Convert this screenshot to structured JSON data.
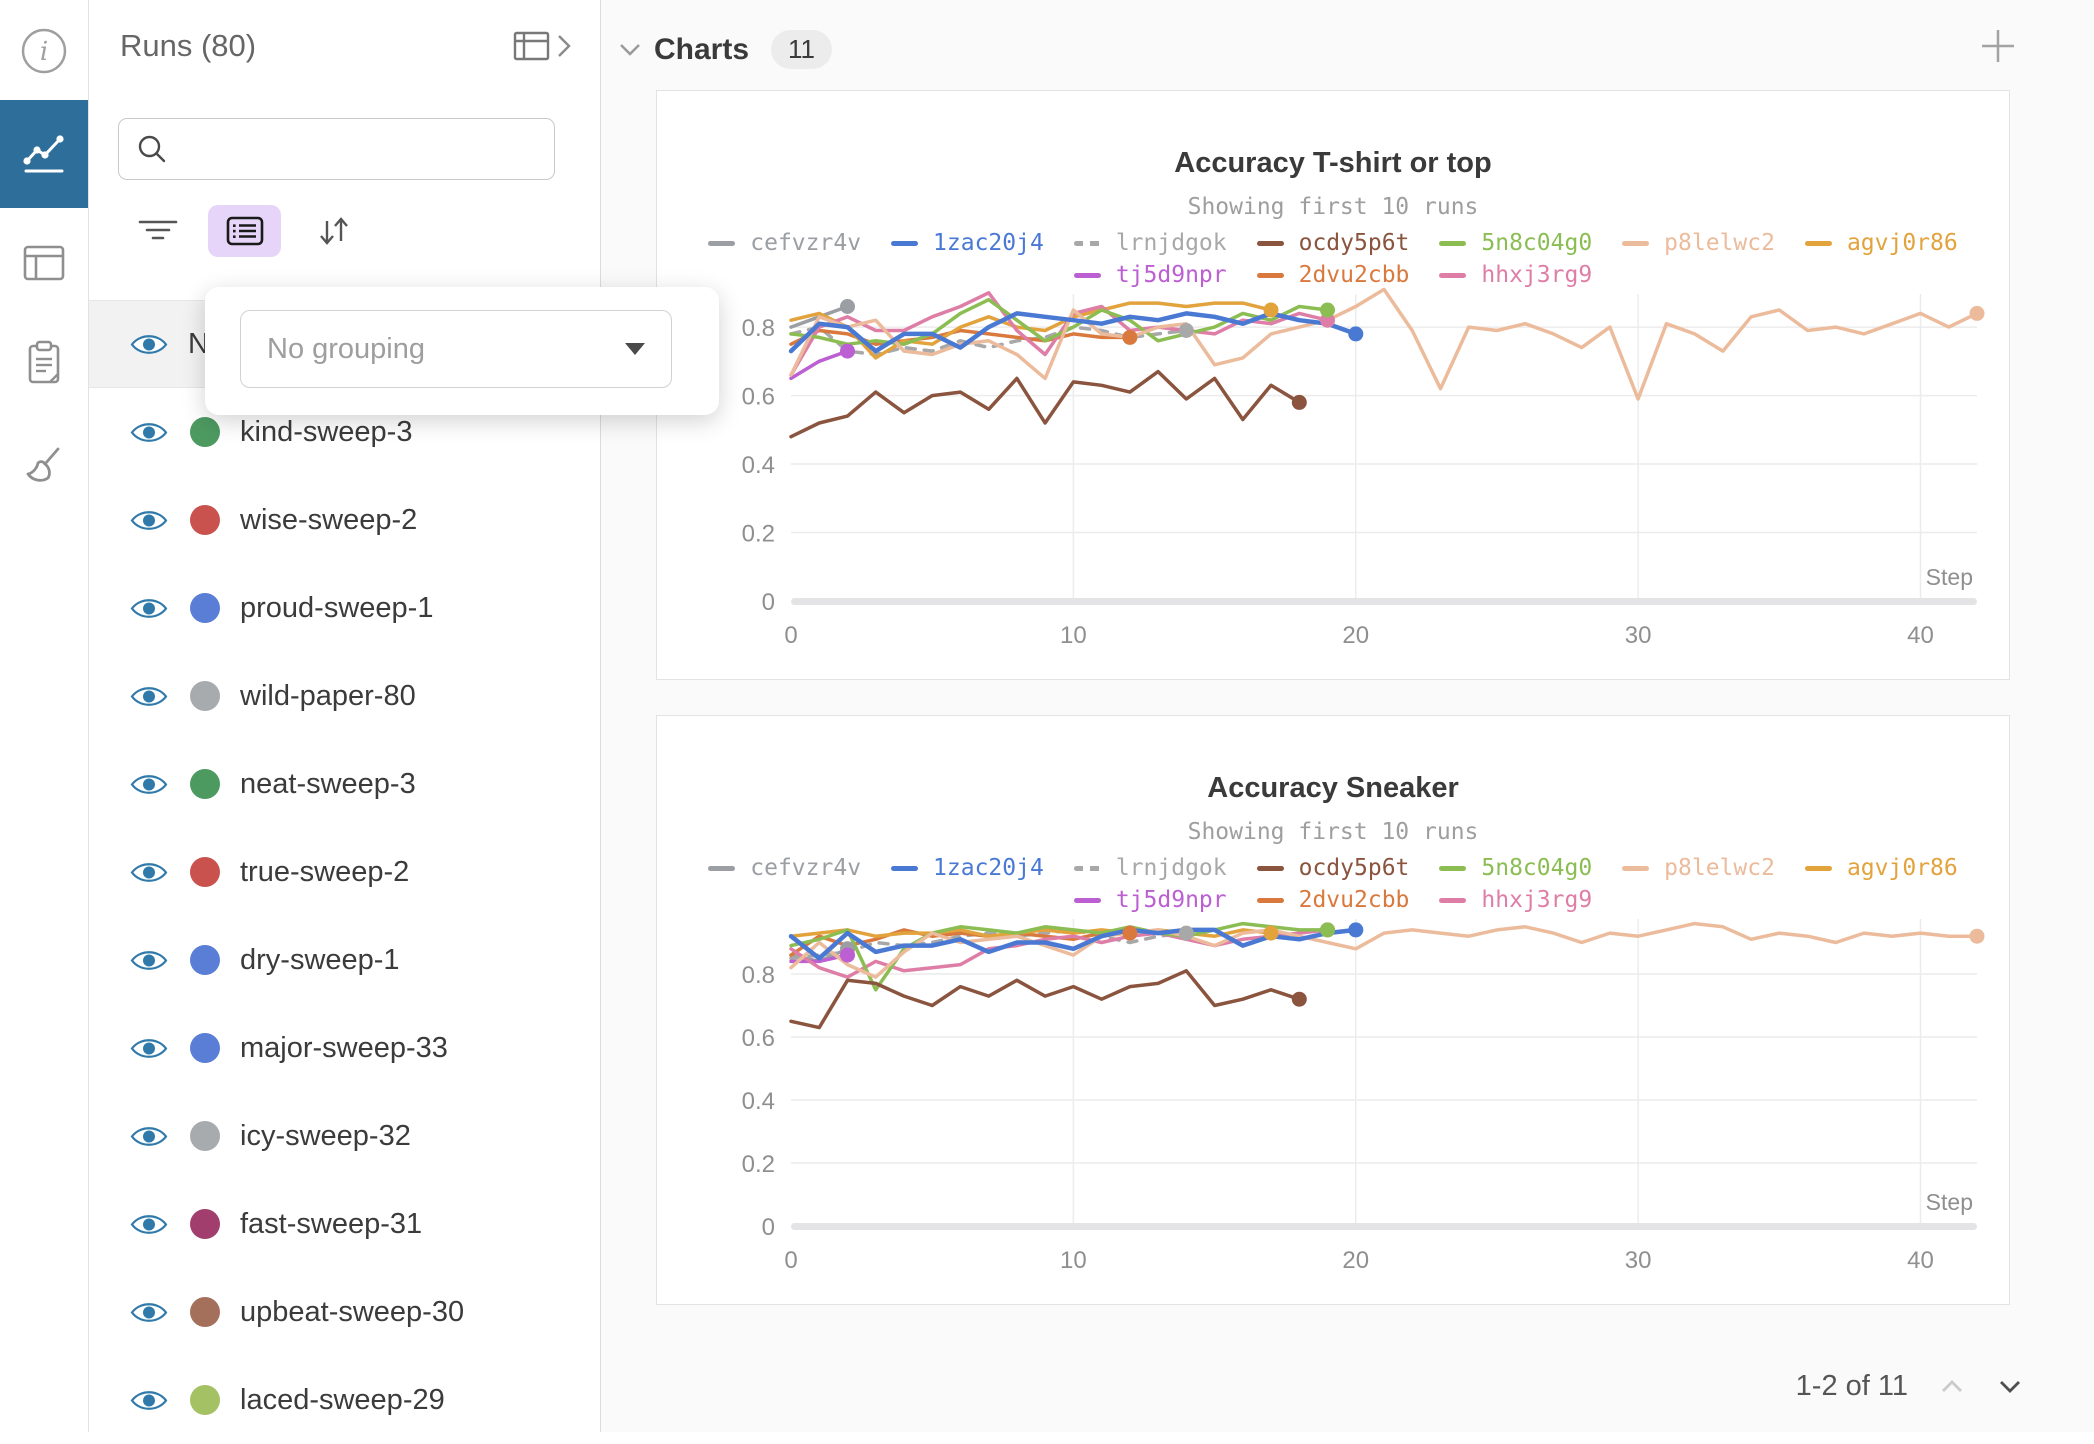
{
  "icons": {
    "rail": [
      "info-icon",
      "line-chart-icon",
      "table-icon",
      "clipboard-icon",
      "broom-icon"
    ],
    "runs_panel": [
      "expand-table-icon",
      "chevron-right-icon",
      "search-icon",
      "filter-icon",
      "list-view-icon",
      "sort-icon",
      "eye-icon"
    ],
    "main": [
      "chevron-down-icon",
      "plus-icon",
      "chevron-up-icon"
    ]
  },
  "nav_rail": {
    "active_color": "#2d6f9a",
    "active_item": "line-chart"
  },
  "runs_panel": {
    "title": "Runs (80)",
    "search": {
      "value": "",
      "placeholder": ""
    },
    "grouping_popup": {
      "selected": "No grouping"
    },
    "list_header": "Name",
    "runs": [
      {
        "name": "kind-sweep-3",
        "color": "#4d9a61"
      },
      {
        "name": "wise-sweep-2",
        "color": "#c9524e"
      },
      {
        "name": "proud-sweep-1",
        "color": "#5a7ed6"
      },
      {
        "name": "wild-paper-80",
        "color": "#a8abae"
      },
      {
        "name": "neat-sweep-3",
        "color": "#4d9a61"
      },
      {
        "name": "true-sweep-2",
        "color": "#c9524e"
      },
      {
        "name": "dry-sweep-1",
        "color": "#5a7ed6"
      },
      {
        "name": "major-sweep-33",
        "color": "#5a7ed6"
      },
      {
        "name": "icy-sweep-32",
        "color": "#a8abae"
      },
      {
        "name": "fast-sweep-31",
        "color": "#a23e6e"
      },
      {
        "name": "upbeat-sweep-30",
        "color": "#a5705b"
      },
      {
        "name": "laced-sweep-29",
        "color": "#a4c263"
      }
    ]
  },
  "charts_section": {
    "title": "Charts",
    "badge": "11",
    "pagination": {
      "label": "1-2 of 11"
    }
  },
  "chart_data": [
    {
      "type": "line",
      "title": "Accuracy T-shirt or top",
      "subtitle": "Showing first 10 runs",
      "xlabel": "Step",
      "ylabel": "",
      "xlim": [
        0,
        42
      ],
      "ylim": [
        0,
        0.92
      ],
      "xticks": [
        0,
        10,
        20,
        30,
        40
      ],
      "yticks": [
        0,
        0.2,
        0.4,
        0.6,
        0.8
      ],
      "grid": true,
      "legend_position": "top",
      "legend_rows": [
        [
          "cefvzr4v",
          "1zac20j4",
          "lrnjdgok",
          "ocdy5p6t",
          "5n8c04g0",
          "p8lelwc2",
          "agvj0r86"
        ],
        [
          "tj5d9npr",
          "2dvu2cbb",
          "hhxj3rg9"
        ]
      ],
      "draw_order": [
        "cefvzr4v",
        "lrnjdgok",
        "tj5d9npr",
        "2dvu2cbb",
        "agvj0r86",
        "hhxj3rg9",
        "5n8c04g0",
        "p8lelwc2",
        "ocdy5p6t",
        "1zac20j4"
      ],
      "series": [
        {
          "name": "cefvzr4v",
          "color": "#9b9ea2",
          "dash": false,
          "y": [
            0.8,
            0.83,
            0.86
          ]
        },
        {
          "name": "1zac20j4",
          "color": "#4a79d4",
          "dash": false,
          "y": [
            0.73,
            0.81,
            0.8,
            0.73,
            0.78,
            0.78,
            0.74,
            0.8,
            0.84,
            0.83,
            0.82,
            0.81,
            0.83,
            0.82,
            0.84,
            0.83,
            0.81,
            0.84,
            0.82,
            0.81,
            0.78
          ]
        },
        {
          "name": "lrnjdgok",
          "color": "#a8a8a8",
          "dash": true,
          "y": [
            0.78,
            0.8,
            0.73,
            0.72,
            0.74,
            0.73,
            0.76,
            0.74,
            0.76,
            0.77,
            0.8,
            0.79,
            0.77,
            0.78,
            0.79
          ]
        },
        {
          "name": "ocdy5p6t",
          "color": "#8a543e",
          "dash": false,
          "y": [
            0.48,
            0.52,
            0.54,
            0.61,
            0.55,
            0.6,
            0.61,
            0.56,
            0.65,
            0.52,
            0.64,
            0.63,
            0.61,
            0.67,
            0.59,
            0.65,
            0.53,
            0.63,
            0.58
          ]
        },
        {
          "name": "5n8c04g0",
          "color": "#8bbd53",
          "dash": false,
          "y": [
            0.78,
            0.77,
            0.75,
            0.76,
            0.75,
            0.78,
            0.84,
            0.88,
            0.82,
            0.76,
            0.8,
            0.85,
            0.82,
            0.76,
            0.78,
            0.8,
            0.84,
            0.82,
            0.86,
            0.85
          ]
        },
        {
          "name": "p8lelwc2",
          "color": "#ecbb9c",
          "dash": false,
          "y": [
            0.66,
            0.83,
            0.8,
            0.82,
            0.73,
            0.72,
            0.75,
            0.76,
            0.72,
            0.65,
            0.85,
            0.78,
            0.77,
            0.8,
            0.81,
            0.69,
            0.71,
            0.78,
            0.8,
            0.82,
            0.86,
            0.91,
            0.79,
            0.62,
            0.8,
            0.79,
            0.81,
            0.78,
            0.74,
            0.8,
            0.59,
            0.81,
            0.78,
            0.73,
            0.83,
            0.85,
            0.79,
            0.8,
            0.78,
            0.81,
            0.84,
            0.8,
            0.84
          ]
        },
        {
          "name": "agvj0r86",
          "color": "#e2a33d",
          "dash": false,
          "y": [
            0.82,
            0.84,
            0.8,
            0.71,
            0.76,
            0.75,
            0.8,
            0.83,
            0.8,
            0.79,
            0.83,
            0.85,
            0.87,
            0.87,
            0.86,
            0.87,
            0.87,
            0.85
          ]
        },
        {
          "name": "tj5d9npr",
          "color": "#bb5fd2",
          "dash": false,
          "y": [
            0.65,
            0.7,
            0.73
          ]
        },
        {
          "name": "2dvu2cbb",
          "color": "#d9793e",
          "dash": false,
          "y": [
            0.75,
            0.79,
            0.78,
            0.75,
            0.76,
            0.77,
            0.79,
            0.78,
            0.77,
            0.76,
            0.78,
            0.77,
            0.77
          ]
        },
        {
          "name": "hhxj3rg9",
          "color": "#de7ea6",
          "dash": false,
          "y": [
            0.66,
            0.8,
            0.83,
            0.79,
            0.79,
            0.83,
            0.86,
            0.9,
            0.79,
            0.72,
            0.84,
            0.86,
            0.79,
            0.8,
            0.79,
            0.78,
            0.82,
            0.81,
            0.84,
            0.82
          ]
        }
      ]
    },
    {
      "type": "line",
      "title": "Accuracy Sneaker",
      "subtitle": "Showing first 10 runs",
      "xlabel": "Step",
      "ylabel": "",
      "xlim": [
        0,
        42
      ],
      "ylim": [
        0,
        1.0
      ],
      "xticks": [
        0,
        10,
        20,
        30,
        40
      ],
      "yticks": [
        0,
        0.2,
        0.4,
        0.6,
        0.8
      ],
      "grid": true,
      "legend_position": "top",
      "legend_rows": [
        [
          "cefvzr4v",
          "1zac20j4",
          "lrnjdgok",
          "ocdy5p6t",
          "5n8c04g0",
          "p8lelwc2",
          "agvj0r86"
        ],
        [
          "tj5d9npr",
          "2dvu2cbb",
          "hhxj3rg9"
        ]
      ],
      "draw_order": [
        "cefvzr4v",
        "lrnjdgok",
        "tj5d9npr",
        "2dvu2cbb",
        "agvj0r86",
        "hhxj3rg9",
        "5n8c04g0",
        "p8lelwc2",
        "ocdy5p6t",
        "1zac20j4"
      ],
      "series": [
        {
          "name": "cefvzr4v",
          "color": "#9b9ea2",
          "dash": false,
          "y": [
            0.86,
            0.84,
            0.88
          ]
        },
        {
          "name": "1zac20j4",
          "color": "#4a79d4",
          "dash": false,
          "y": [
            0.92,
            0.85,
            0.93,
            0.87,
            0.89,
            0.89,
            0.91,
            0.87,
            0.9,
            0.9,
            0.88,
            0.92,
            0.94,
            0.93,
            0.94,
            0.94,
            0.89,
            0.92,
            0.91,
            0.93,
            0.94
          ]
        },
        {
          "name": "lrnjdgok",
          "color": "#a8a8a8",
          "dash": true,
          "y": [
            0.85,
            0.86,
            0.87,
            0.9,
            0.89,
            0.9,
            0.92,
            0.93,
            0.92,
            0.93,
            0.94,
            0.92,
            0.9,
            0.92,
            0.93
          ]
        },
        {
          "name": "ocdy5p6t",
          "color": "#8a543e",
          "dash": false,
          "y": [
            0.65,
            0.63,
            0.78,
            0.77,
            0.73,
            0.7,
            0.76,
            0.73,
            0.78,
            0.73,
            0.76,
            0.72,
            0.76,
            0.77,
            0.81,
            0.7,
            0.72,
            0.75,
            0.72
          ]
        },
        {
          "name": "5n8c04g0",
          "color": "#8bbd53",
          "dash": false,
          "y": [
            0.89,
            0.91,
            0.94,
            0.75,
            0.88,
            0.93,
            0.95,
            0.94,
            0.93,
            0.95,
            0.94,
            0.93,
            0.95,
            0.93,
            0.92,
            0.94,
            0.96,
            0.95,
            0.94,
            0.94
          ]
        },
        {
          "name": "p8lelwc2",
          "color": "#ecbb9c",
          "dash": false,
          "y": [
            0.82,
            0.9,
            0.83,
            0.79,
            0.87,
            0.93,
            0.9,
            0.91,
            0.92,
            0.89,
            0.86,
            0.92,
            0.93,
            0.94,
            0.92,
            0.89,
            0.93,
            0.94,
            0.92,
            0.9,
            0.88,
            0.93,
            0.94,
            0.93,
            0.92,
            0.94,
            0.95,
            0.93,
            0.9,
            0.93,
            0.92,
            0.94,
            0.96,
            0.95,
            0.91,
            0.93,
            0.92,
            0.9,
            0.93,
            0.92,
            0.93,
            0.92,
            0.92
          ]
        },
        {
          "name": "agvj0r86",
          "color": "#e2a33d",
          "dash": false,
          "y": [
            0.92,
            0.93,
            0.94,
            0.92,
            0.93,
            0.93,
            0.94,
            0.92,
            0.93,
            0.94,
            0.93,
            0.94,
            0.93,
            0.94,
            0.93,
            0.92,
            0.94,
            0.93
          ]
        },
        {
          "name": "tj5d9npr",
          "color": "#bb5fd2",
          "dash": false,
          "y": [
            0.84,
            0.84,
            0.86
          ]
        },
        {
          "name": "2dvu2cbb",
          "color": "#d9793e",
          "dash": false,
          "y": [
            0.86,
            0.92,
            0.89,
            0.91,
            0.94,
            0.92,
            0.93,
            0.92,
            0.93,
            0.92,
            0.91,
            0.93,
            0.93
          ]
        },
        {
          "name": "hhxj3rg9",
          "color": "#de7ea6",
          "dash": false,
          "y": [
            0.88,
            0.82,
            0.79,
            0.84,
            0.81,
            0.82,
            0.83,
            0.88,
            0.89,
            0.91,
            0.92,
            0.9,
            0.92,
            0.93,
            0.91,
            0.89,
            0.91,
            0.92,
            0.93,
            0.94
          ]
        }
      ]
    }
  ]
}
